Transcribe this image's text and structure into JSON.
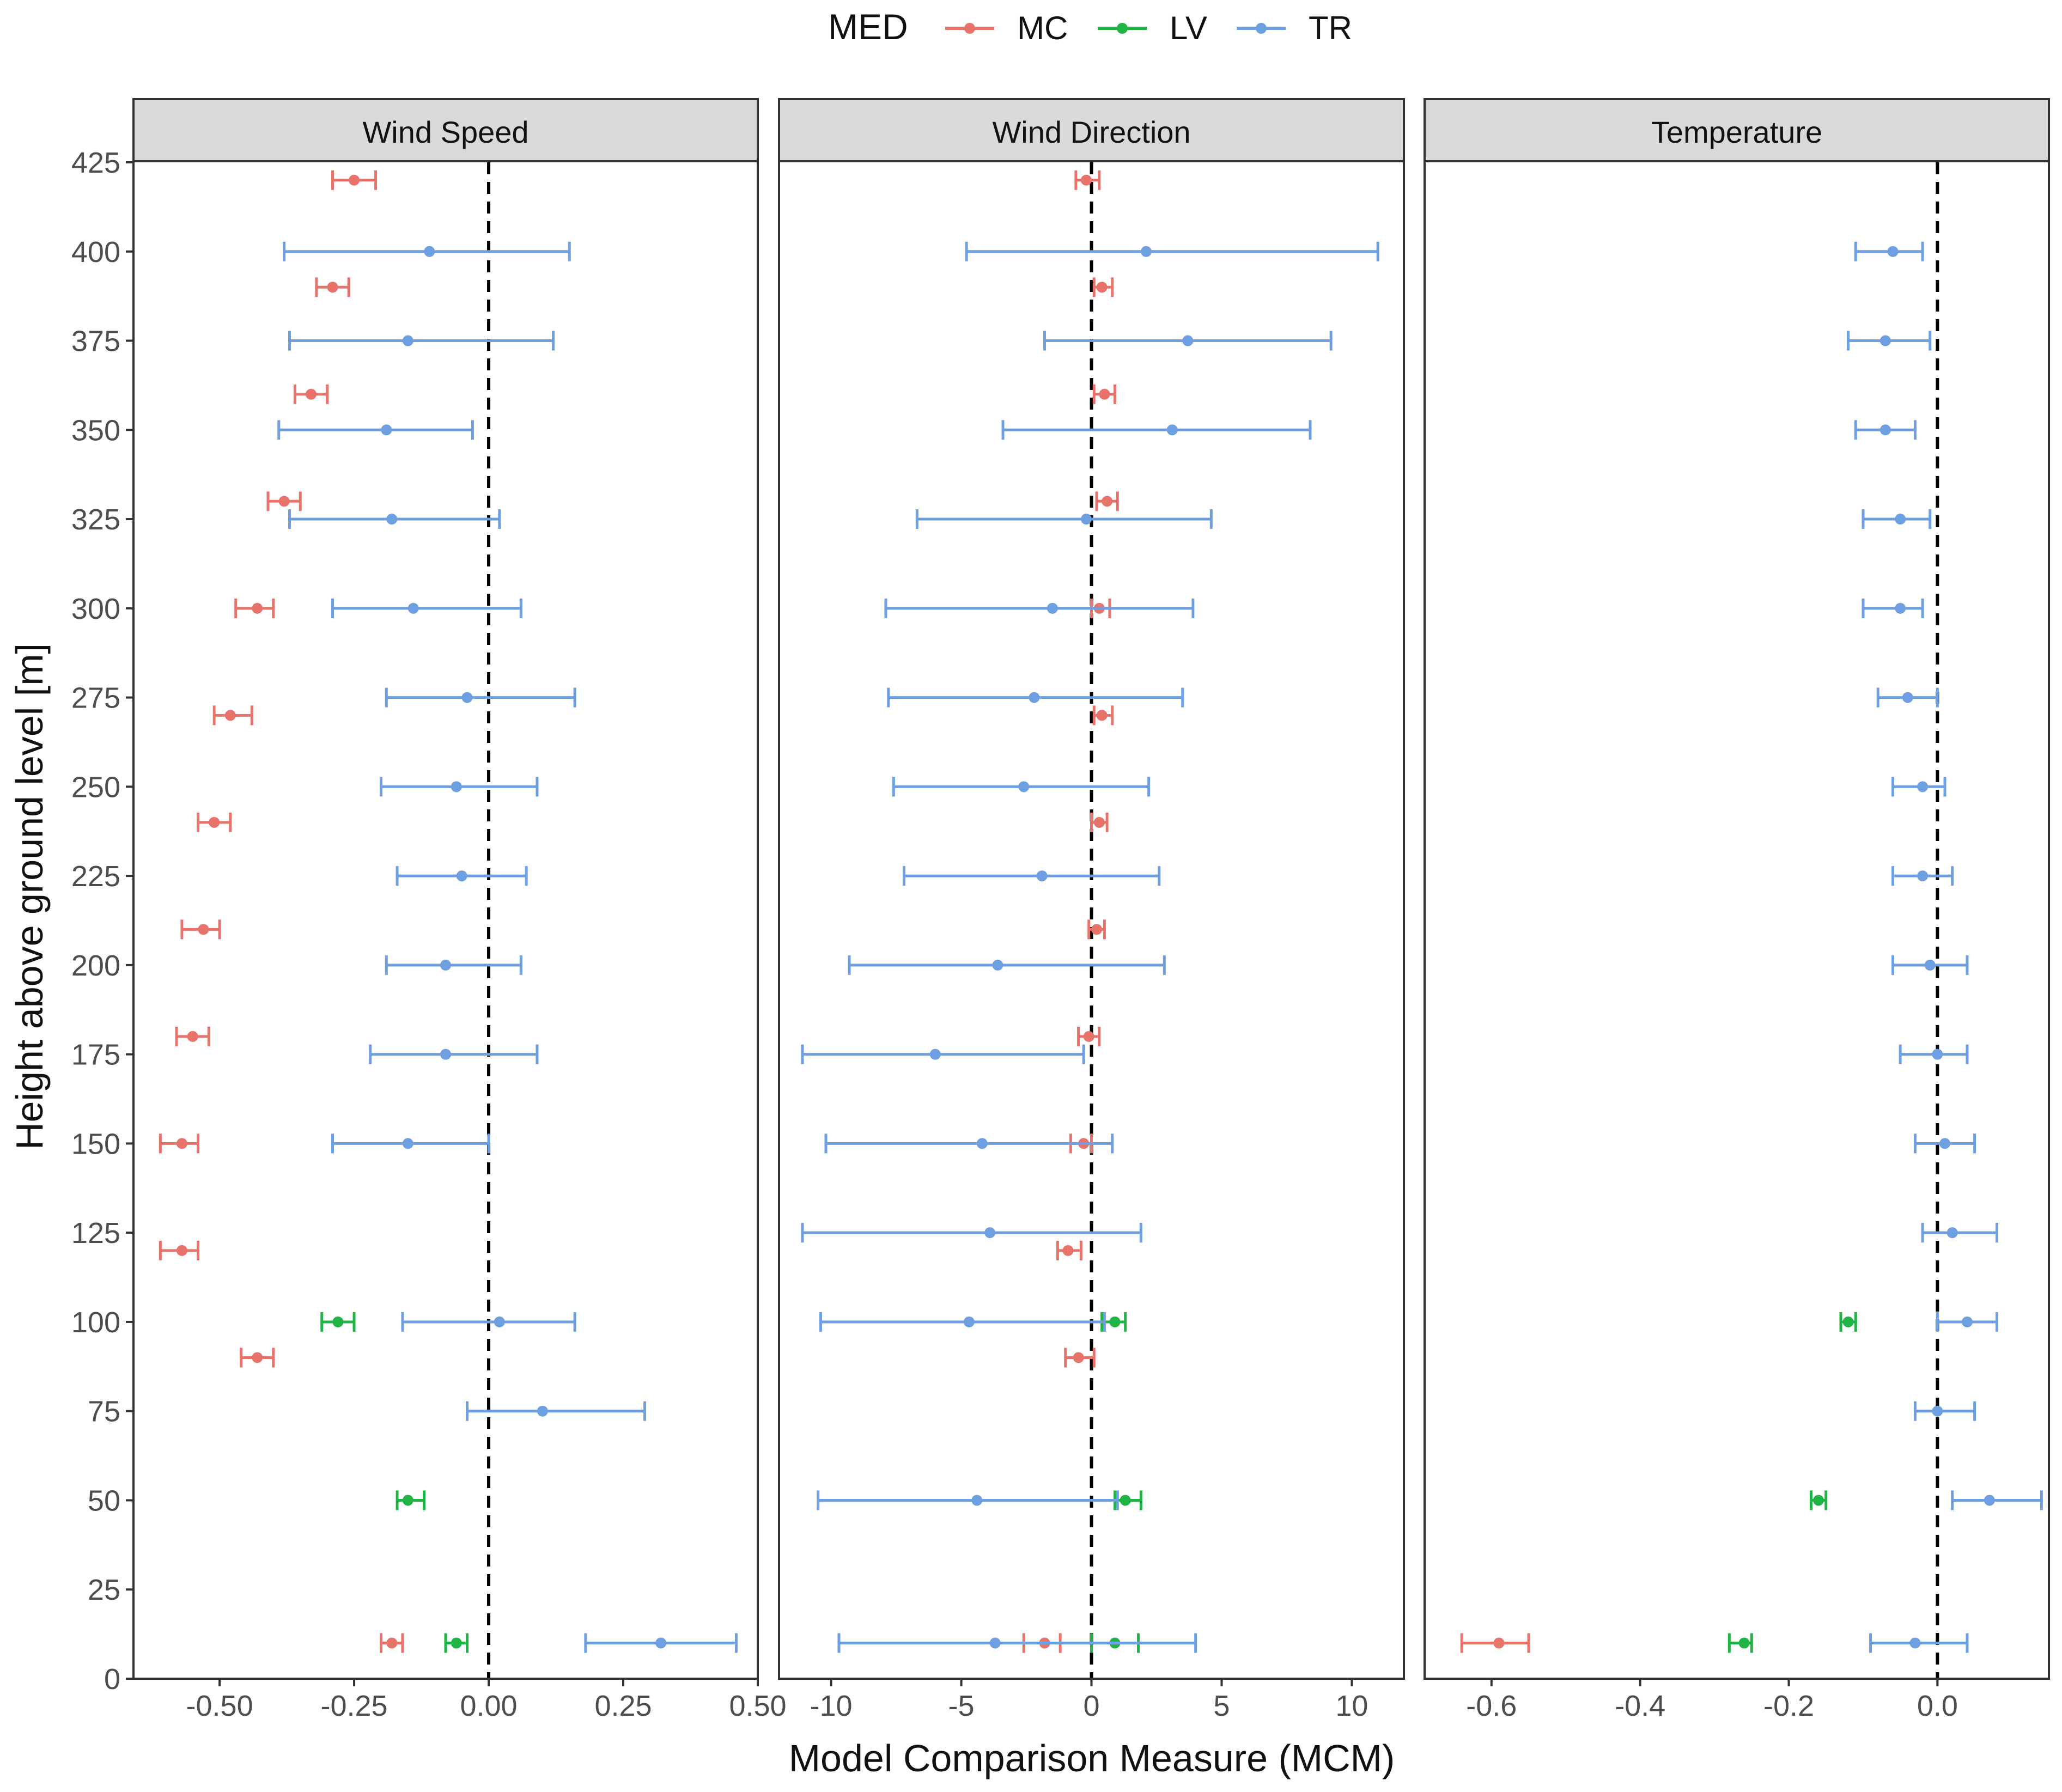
{
  "colors": {
    "MC": "#E8736B",
    "LV": "#20B445",
    "TR": "#6E9FE0",
    "strip": "#D9D9D9",
    "frame": "#333333",
    "text": "#111111",
    "ticktext": "#4D4D4D"
  },
  "legend": {
    "title": "MED",
    "entries": [
      {
        "key": "MC",
        "label": "MC"
      },
      {
        "key": "LV",
        "label": "LV"
      },
      {
        "key": "TR",
        "label": "TR"
      }
    ]
  },
  "y_axis": {
    "label": "Height above ground level [m]",
    "range": [
      0,
      425
    ],
    "ticks": [
      0,
      25,
      50,
      75,
      100,
      125,
      150,
      175,
      200,
      225,
      250,
      275,
      300,
      325,
      350,
      375,
      400,
      425
    ]
  },
  "x_axis_label": "Model Comparison Measure (MCM)",
  "chart_data": [
    {
      "type": "errorbar",
      "title": "Wind Speed",
      "xlim": [
        -0.66,
        0.5
      ],
      "xticks": [
        -0.5,
        -0.25,
        0.0,
        0.25,
        0.5
      ],
      "xtick_labels": [
        "-0.50",
        "-0.25",
        "0.00",
        "0.25",
        "0.50"
      ],
      "series": [
        {
          "name": "MC",
          "points": [
            {
              "y": 420,
              "x": -0.25,
              "lo": -0.29,
              "hi": -0.21
            },
            {
              "y": 390,
              "x": -0.29,
              "lo": -0.32,
              "hi": -0.26
            },
            {
              "y": 360,
              "x": -0.33,
              "lo": -0.36,
              "hi": -0.3
            },
            {
              "y": 330,
              "x": -0.38,
              "lo": -0.41,
              "hi": -0.35
            },
            {
              "y": 300,
              "x": -0.43,
              "lo": -0.47,
              "hi": -0.4
            },
            {
              "y": 270,
              "x": -0.48,
              "lo": -0.51,
              "hi": -0.44
            },
            {
              "y": 240,
              "x": -0.51,
              "lo": -0.54,
              "hi": -0.48
            },
            {
              "y": 210,
              "x": -0.53,
              "lo": -0.57,
              "hi": -0.5
            },
            {
              "y": 180,
              "x": -0.55,
              "lo": -0.58,
              "hi": -0.52
            },
            {
              "y": 150,
              "x": -0.57,
              "lo": -0.61,
              "hi": -0.54
            },
            {
              "y": 120,
              "x": -0.57,
              "lo": -0.61,
              "hi": -0.54
            },
            {
              "y": 90,
              "x": -0.43,
              "lo": -0.46,
              "hi": -0.4
            },
            {
              "y": 10,
              "x": -0.18,
              "lo": -0.2,
              "hi": -0.16
            }
          ]
        },
        {
          "name": "LV",
          "points": [
            {
              "y": 100,
              "x": -0.28,
              "lo": -0.31,
              "hi": -0.25
            },
            {
              "y": 50,
              "x": -0.15,
              "lo": -0.17,
              "hi": -0.12
            },
            {
              "y": 10,
              "x": -0.06,
              "lo": -0.08,
              "hi": -0.04
            }
          ]
        },
        {
          "name": "TR",
          "points": [
            {
              "y": 400,
              "x": -0.11,
              "lo": -0.38,
              "hi": 0.15
            },
            {
              "y": 375,
              "x": -0.15,
              "lo": -0.37,
              "hi": 0.12
            },
            {
              "y": 350,
              "x": -0.19,
              "lo": -0.39,
              "hi": -0.03
            },
            {
              "y": 325,
              "x": -0.18,
              "lo": -0.37,
              "hi": 0.02
            },
            {
              "y": 300,
              "x": -0.14,
              "lo": -0.29,
              "hi": 0.06
            },
            {
              "y": 275,
              "x": -0.04,
              "lo": -0.19,
              "hi": 0.16
            },
            {
              "y": 250,
              "x": -0.06,
              "lo": -0.2,
              "hi": 0.09
            },
            {
              "y": 225,
              "x": -0.05,
              "lo": -0.17,
              "hi": 0.07
            },
            {
              "y": 200,
              "x": -0.08,
              "lo": -0.19,
              "hi": 0.06
            },
            {
              "y": 175,
              "x": -0.08,
              "lo": -0.22,
              "hi": 0.09
            },
            {
              "y": 150,
              "x": -0.15,
              "lo": -0.29,
              "hi": 0.0
            },
            {
              "y": 100,
              "x": 0.02,
              "lo": -0.16,
              "hi": 0.16
            },
            {
              "y": 75,
              "x": 0.1,
              "lo": -0.04,
              "hi": 0.29
            },
            {
              "y": 10,
              "x": 0.32,
              "lo": 0.18,
              "hi": 0.46
            }
          ]
        }
      ]
    },
    {
      "type": "errorbar",
      "title": "Wind Direction",
      "xlim": [
        -12,
        12
      ],
      "xticks": [
        -10,
        -5,
        0,
        5,
        10
      ],
      "xtick_labels": [
        "-10",
        "-5",
        "0",
        "5",
        "10"
      ],
      "series": [
        {
          "name": "MC",
          "points": [
            {
              "y": 420,
              "x": -0.2,
              "lo": -0.6,
              "hi": 0.3
            },
            {
              "y": 390,
              "x": 0.4,
              "lo": 0.1,
              "hi": 0.8
            },
            {
              "y": 360,
              "x": 0.5,
              "lo": 0.1,
              "hi": 0.9
            },
            {
              "y": 330,
              "x": 0.6,
              "lo": 0.2,
              "hi": 1.0
            },
            {
              "y": 300,
              "x": 0.3,
              "lo": 0.0,
              "hi": 0.7
            },
            {
              "y": 270,
              "x": 0.4,
              "lo": 0.1,
              "hi": 0.8
            },
            {
              "y": 240,
              "x": 0.3,
              "lo": 0.0,
              "hi": 0.6
            },
            {
              "y": 210,
              "x": 0.2,
              "lo": -0.1,
              "hi": 0.5
            },
            {
              "y": 180,
              "x": -0.1,
              "lo": -0.5,
              "hi": 0.3
            },
            {
              "y": 150,
              "x": -0.3,
              "lo": -0.8,
              "hi": 0.0
            },
            {
              "y": 120,
              "x": -0.9,
              "lo": -1.3,
              "hi": -0.4
            },
            {
              "y": 90,
              "x": -0.5,
              "lo": -1.0,
              "hi": 0.1
            },
            {
              "y": 10,
              "x": -1.8,
              "lo": -2.6,
              "hi": -1.2
            }
          ]
        },
        {
          "name": "LV",
          "points": [
            {
              "y": 100,
              "x": 0.9,
              "lo": 0.4,
              "hi": 1.3
            },
            {
              "y": 50,
              "x": 1.3,
              "lo": 0.9,
              "hi": 1.9
            },
            {
              "y": 10,
              "x": 0.9,
              "lo": 0.0,
              "hi": 1.8
            }
          ]
        },
        {
          "name": "TR",
          "points": [
            {
              "y": 400,
              "x": 2.1,
              "lo": -4.8,
              "hi": 11.0
            },
            {
              "y": 375,
              "x": 3.7,
              "lo": -1.8,
              "hi": 9.2
            },
            {
              "y": 350,
              "x": 3.1,
              "lo": -3.4,
              "hi": 8.4
            },
            {
              "y": 325,
              "x": -0.2,
              "lo": -6.7,
              "hi": 4.6
            },
            {
              "y": 300,
              "x": -1.5,
              "lo": -7.9,
              "hi": 3.9
            },
            {
              "y": 275,
              "x": -2.2,
              "lo": -7.8,
              "hi": 3.5
            },
            {
              "y": 250,
              "x": -2.6,
              "lo": -7.6,
              "hi": 2.2
            },
            {
              "y": 225,
              "x": -1.9,
              "lo": -7.2,
              "hi": 2.6
            },
            {
              "y": 200,
              "x": -3.6,
              "lo": -9.3,
              "hi": 2.8
            },
            {
              "y": 175,
              "x": -6.0,
              "lo": -11.1,
              "hi": -0.3
            },
            {
              "y": 150,
              "x": -4.2,
              "lo": -10.2,
              "hi": 0.8
            },
            {
              "y": 125,
              "x": -3.9,
              "lo": -11.1,
              "hi": 1.9
            },
            {
              "y": 100,
              "x": -4.7,
              "lo": -10.4,
              "hi": 0.5
            },
            {
              "y": 50,
              "x": -4.4,
              "lo": -10.5,
              "hi": 1.0
            },
            {
              "y": 10,
              "x": -3.7,
              "lo": -9.7,
              "hi": 4.0
            }
          ]
        }
      ]
    },
    {
      "type": "errorbar",
      "title": "Temperature",
      "xlim": [
        -0.69,
        0.15
      ],
      "xticks": [
        -0.6,
        -0.4,
        -0.2,
        0.0
      ],
      "xtick_labels": [
        "-0.6",
        "-0.4",
        "-0.2",
        "0.0"
      ],
      "series": [
        {
          "name": "MC",
          "points": [
            {
              "y": 10,
              "x": -0.59,
              "lo": -0.64,
              "hi": -0.55
            }
          ]
        },
        {
          "name": "LV",
          "points": [
            {
              "y": 100,
              "x": -0.12,
              "lo": -0.13,
              "hi": -0.11
            },
            {
              "y": 50,
              "x": -0.16,
              "lo": -0.17,
              "hi": -0.15
            },
            {
              "y": 10,
              "x": -0.26,
              "lo": -0.28,
              "hi": -0.25
            }
          ]
        },
        {
          "name": "TR",
          "points": [
            {
              "y": 400,
              "x": -0.06,
              "lo": -0.11,
              "hi": -0.02
            },
            {
              "y": 375,
              "x": -0.07,
              "lo": -0.12,
              "hi": -0.01
            },
            {
              "y": 350,
              "x": -0.07,
              "lo": -0.11,
              "hi": -0.03
            },
            {
              "y": 325,
              "x": -0.05,
              "lo": -0.1,
              "hi": -0.01
            },
            {
              "y": 300,
              "x": -0.05,
              "lo": -0.1,
              "hi": -0.02
            },
            {
              "y": 275,
              "x": -0.04,
              "lo": -0.08,
              "hi": 0.0
            },
            {
              "y": 250,
              "x": -0.02,
              "lo": -0.06,
              "hi": 0.01
            },
            {
              "y": 225,
              "x": -0.02,
              "lo": -0.06,
              "hi": 0.02
            },
            {
              "y": 200,
              "x": -0.01,
              "lo": -0.06,
              "hi": 0.04
            },
            {
              "y": 175,
              "x": 0.0,
              "lo": -0.05,
              "hi": 0.04
            },
            {
              "y": 150,
              "x": 0.01,
              "lo": -0.03,
              "hi": 0.05
            },
            {
              "y": 125,
              "x": 0.02,
              "lo": -0.02,
              "hi": 0.08
            },
            {
              "y": 100,
              "x": 0.04,
              "lo": 0.0,
              "hi": 0.08
            },
            {
              "y": 75,
              "x": 0.0,
              "lo": -0.03,
              "hi": 0.05
            },
            {
              "y": 50,
              "x": 0.07,
              "lo": 0.02,
              "hi": 0.14
            },
            {
              "y": 10,
              "x": -0.03,
              "lo": -0.09,
              "hi": 0.04
            }
          ]
        }
      ]
    }
  ]
}
